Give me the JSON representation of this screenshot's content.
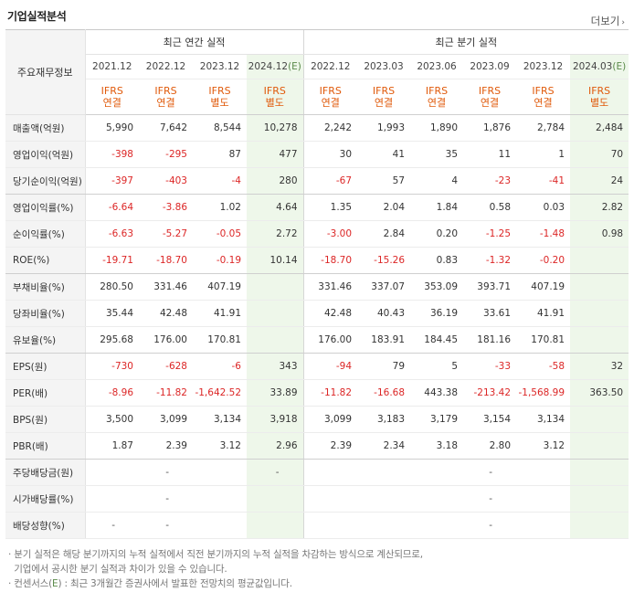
{
  "header": {
    "title": "기업실적분석",
    "more": "더보기",
    "more_icon": "chevron-right-icon"
  },
  "table": {
    "corner": "주요재무정보",
    "groups": [
      "최근 연간 실적",
      "최근 분기 실적"
    ],
    "periods": [
      "2021.12",
      "2022.12",
      "2023.12",
      "2024.12(E)",
      "2022.12",
      "2023.03",
      "2023.06",
      "2023.09",
      "2023.12",
      "2024.03(E)"
    ],
    "estimate_columns": [
      3,
      9
    ],
    "accounting": [
      [
        "IFRS",
        "연결"
      ],
      [
        "IFRS",
        "연결"
      ],
      [
        "IFRS",
        "별도"
      ],
      [
        "IFRS",
        "별도"
      ],
      [
        "IFRS",
        "연결"
      ],
      [
        "IFRS",
        "연결"
      ],
      [
        "IFRS",
        "연결"
      ],
      [
        "IFRS",
        "연결"
      ],
      [
        "IFRS",
        "연결"
      ],
      [
        "IFRS",
        "별도"
      ]
    ],
    "rows": [
      {
        "label": "매출액(억원)",
        "values": [
          "5,990",
          "7,642",
          "8,544",
          "10,278",
          "2,242",
          "1,993",
          "1,890",
          "1,876",
          "2,784",
          "2,484"
        ]
      },
      {
        "label": "영업이익(억원)",
        "values": [
          "-398",
          "-295",
          "87",
          "477",
          "30",
          "41",
          "35",
          "11",
          "1",
          "70"
        ]
      },
      {
        "label": "당기순이익(억원)",
        "values": [
          "-397",
          "-403",
          "-4",
          "280",
          "-67",
          "57",
          "4",
          "-23",
          "-41",
          "24"
        ]
      },
      {
        "label": "영업이익률(%)",
        "values": [
          "-6.64",
          "-3.86",
          "1.02",
          "4.64",
          "1.35",
          "2.04",
          "1.84",
          "0.58",
          "0.03",
          "2.82"
        ]
      },
      {
        "label": "순이익률(%)",
        "values": [
          "-6.63",
          "-5.27",
          "-0.05",
          "2.72",
          "-3.00",
          "2.84",
          "0.20",
          "-1.25",
          "-1.48",
          "0.98"
        ]
      },
      {
        "label": "ROE(%)",
        "values": [
          "-19.71",
          "-18.70",
          "-0.19",
          "10.14",
          "-18.70",
          "-15.26",
          "0.83",
          "-1.32",
          "-0.20",
          ""
        ]
      },
      {
        "label": "부채비율(%)",
        "values": [
          "280.50",
          "331.46",
          "407.19",
          "",
          "331.46",
          "337.07",
          "353.09",
          "393.71",
          "407.19",
          ""
        ]
      },
      {
        "label": "당좌비율(%)",
        "values": [
          "35.44",
          "42.48",
          "41.91",
          "",
          "42.48",
          "40.43",
          "36.19",
          "33.61",
          "41.91",
          ""
        ]
      },
      {
        "label": "유보율(%)",
        "values": [
          "295.68",
          "176.00",
          "170.81",
          "",
          "176.00",
          "183.91",
          "184.45",
          "181.16",
          "170.81",
          ""
        ]
      },
      {
        "label": "EPS(원)",
        "values": [
          "-730",
          "-628",
          "-6",
          "343",
          "-94",
          "79",
          "5",
          "-33",
          "-58",
          "32"
        ]
      },
      {
        "label": "PER(배)",
        "values": [
          "-8.96",
          "-11.82",
          "-1,642.52",
          "33.89",
          "-11.82",
          "-16.68",
          "443.38",
          "-213.42",
          "-1,568.99",
          "363.50"
        ]
      },
      {
        "label": "BPS(원)",
        "values": [
          "3,500",
          "3,099",
          "3,134",
          "3,918",
          "3,099",
          "3,183",
          "3,179",
          "3,154",
          "3,134",
          ""
        ]
      },
      {
        "label": "PBR(배)",
        "values": [
          "1.87",
          "2.39",
          "3.12",
          "2.96",
          "2.39",
          "2.34",
          "3.18",
          "2.80",
          "3.12",
          ""
        ]
      },
      {
        "label": "주당배당금(원)",
        "values": [
          "",
          "-",
          "",
          "-",
          "",
          "",
          "",
          "-",
          "",
          ""
        ]
      },
      {
        "label": "시가배당률(%)",
        "values": [
          "",
          "-",
          "",
          "",
          "",
          "",
          "",
          "-",
          "",
          ""
        ]
      },
      {
        "label": "배당성향(%)",
        "values": [
          "-",
          "-",
          "",
          "",
          "",
          "",
          "",
          "-",
          "",
          ""
        ]
      }
    ],
    "section_end_rows": [
      2,
      5,
      8,
      12
    ]
  },
  "notes": [
    {
      "bullet": "·",
      "text": "분기 실적은 해당 분기까지의 누적 실적에서 직전 분기까지의 누적 실적을 차감하는 방식으로 계산되므로,"
    },
    {
      "bullet": "",
      "text": "기업에서 공시한 분기 실적과 차이가 있을 수 있습니다."
    },
    {
      "bullet": "·",
      "text": "컨센서스(E) : 최근 3개월간 증권사에서 발표한 전망치의 평균값입니다."
    }
  ],
  "colors": {
    "negative": "#dc2626",
    "accounting": "#e05a0b",
    "estimate_bg": "#eef7ea",
    "header_bg": "#f4f4f4"
  }
}
